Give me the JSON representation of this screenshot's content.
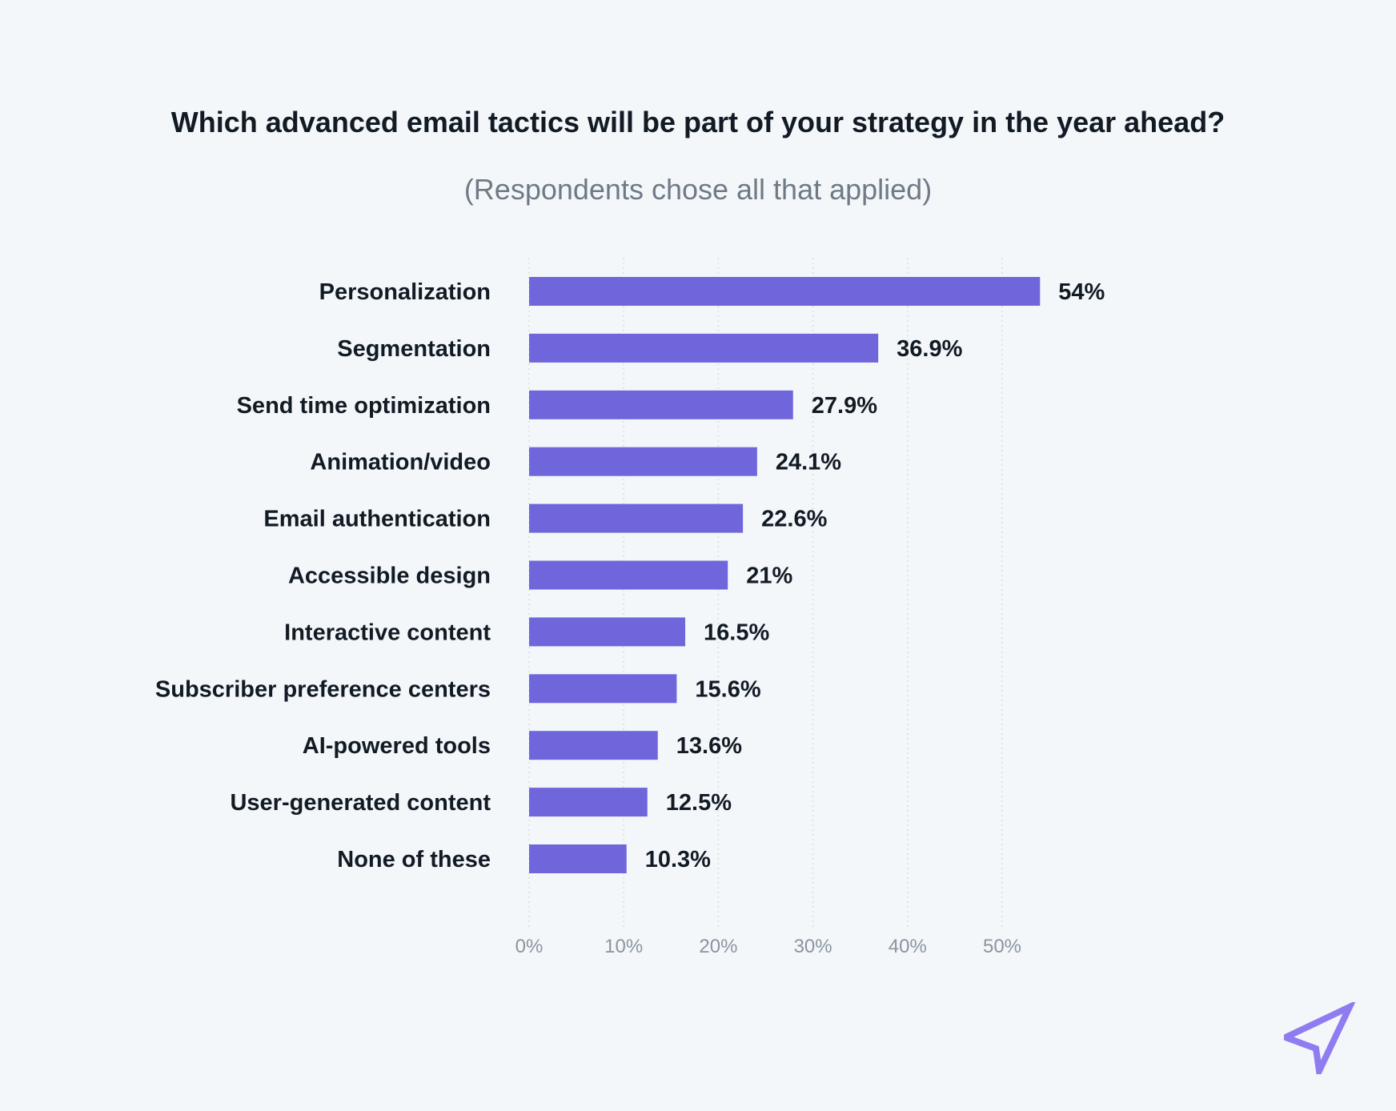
{
  "chart_data": {
    "type": "bar",
    "orientation": "horizontal",
    "title": "Which advanced email tactics will be part of your strategy in the year ahead?",
    "subtitle": "(Respondents chose all that applied)",
    "categories": [
      "Personalization",
      "Segmentation",
      "Send time optimization",
      "Animation/video",
      "Email authentication",
      "Accessible design",
      "Interactive content",
      "Subscriber preference centers",
      "AI-powered tools",
      "User-generated content",
      "None of these"
    ],
    "values": [
      54,
      36.9,
      27.9,
      24.1,
      22.6,
      21,
      16.5,
      15.6,
      13.6,
      12.5,
      10.3
    ],
    "value_labels": [
      "54%",
      "36.9%",
      "27.9%",
      "24.1%",
      "22.6%",
      "21%",
      "16.5%",
      "15.6%",
      "13.6%",
      "12.5%",
      "10.3%"
    ],
    "xlim": [
      0,
      50
    ],
    "x_ticks": [
      "0%",
      "10%",
      "20%",
      "30%",
      "40%",
      "50%"
    ],
    "xlabel": "",
    "ylabel": "",
    "grid": true,
    "bar_color": "#7066dc"
  },
  "logo": {
    "icon": "paper-plane-icon",
    "color": "#8f7cf0"
  }
}
